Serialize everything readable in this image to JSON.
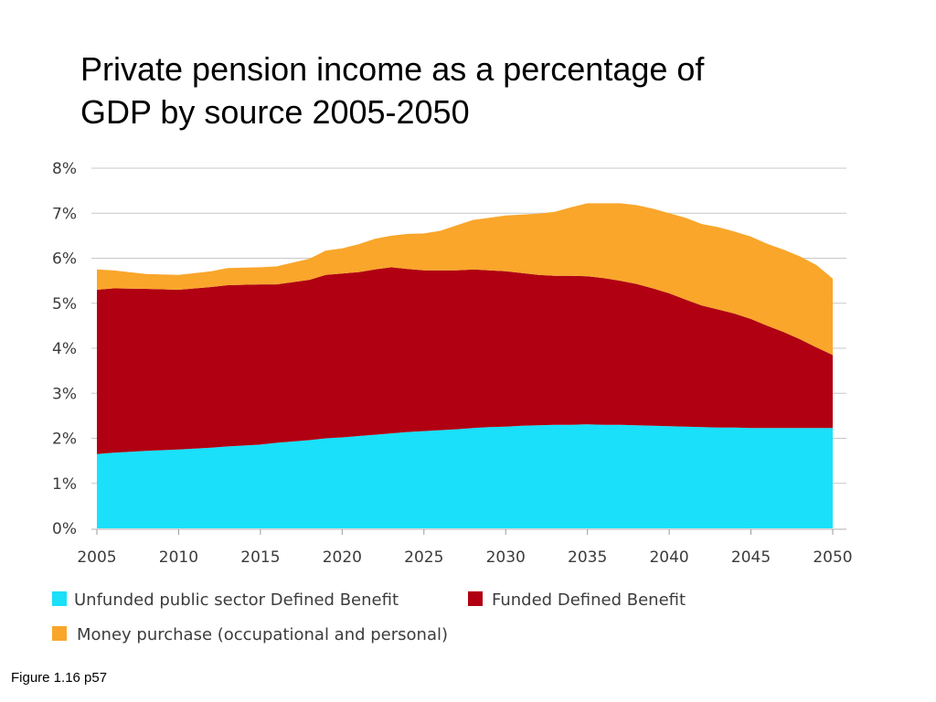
{
  "slide": {
    "title_line1": "Private pension income as a percentage of",
    "title_line2": "GDP by source 2005-2050",
    "caption": "Figure 1.16 p57"
  },
  "chart_data": {
    "type": "area",
    "stacked": true,
    "title": "",
    "xlabel": "",
    "ylabel": "",
    "x": [
      2005,
      2006,
      2008,
      2010,
      2012,
      2013,
      2015,
      2016,
      2018,
      2019,
      2020,
      2021,
      2022,
      2023,
      2024,
      2025,
      2026,
      2027,
      2028,
      2029,
      2030,
      2031,
      2032,
      2033,
      2034,
      2035,
      2036,
      2037,
      2038,
      2039,
      2040,
      2041,
      2042,
      2043,
      2044,
      2045,
      2046,
      2047,
      2048,
      2049,
      2050
    ],
    "xticks": [
      2005,
      2010,
      2015,
      2020,
      2025,
      2030,
      2035,
      2040,
      2045,
      2050
    ],
    "xtick_labels": [
      "2005",
      "2010",
      "2015",
      "2020",
      "2025",
      "2030",
      "2035",
      "2040",
      "2045",
      "2050"
    ],
    "ylim": [
      0,
      8
    ],
    "yticks": [
      0,
      1,
      2,
      3,
      4,
      5,
      6,
      7,
      8
    ],
    "ytick_labels": [
      "0%",
      "1%",
      "2%",
      "3%",
      "4%",
      "5%",
      "6%",
      "7%",
      "8%"
    ],
    "grid": "horizontal",
    "legend_position": "bottom",
    "series": [
      {
        "name": "Unfunded public sector Defined Benefit",
        "color": "#1ae0fa",
        "values": [
          1.65,
          1.68,
          1.72,
          1.75,
          1.79,
          1.82,
          1.86,
          1.9,
          1.96,
          2.0,
          2.02,
          2.05,
          2.08,
          2.11,
          2.14,
          2.16,
          2.18,
          2.2,
          2.23,
          2.25,
          2.26,
          2.28,
          2.29,
          2.3,
          2.3,
          2.31,
          2.3,
          2.3,
          2.29,
          2.28,
          2.27,
          2.26,
          2.25,
          2.24,
          2.24,
          2.23,
          2.23,
          2.23,
          2.23,
          2.23,
          2.23
        ]
      },
      {
        "name": "Funded Defined Benefit",
        "color": "#b00012",
        "values": [
          3.65,
          3.65,
          3.6,
          3.55,
          3.57,
          3.58,
          3.56,
          3.52,
          3.56,
          3.63,
          3.64,
          3.64,
          3.67,
          3.69,
          3.62,
          3.57,
          3.55,
          3.53,
          3.52,
          3.48,
          3.45,
          3.39,
          3.34,
          3.31,
          3.31,
          3.29,
          3.26,
          3.2,
          3.14,
          3.05,
          2.95,
          2.82,
          2.7,
          2.62,
          2.53,
          2.42,
          2.27,
          2.13,
          1.97,
          1.79,
          1.62
        ]
      },
      {
        "name": "Money purchase (occupational and personal)",
        "color": "#f9a62b",
        "values": [
          0.45,
          0.4,
          0.33,
          0.33,
          0.35,
          0.38,
          0.38,
          0.4,
          0.47,
          0.54,
          0.56,
          0.62,
          0.68,
          0.7,
          0.78,
          0.82,
          0.88,
          1.0,
          1.1,
          1.17,
          1.24,
          1.3,
          1.36,
          1.42,
          1.52,
          1.62,
          1.66,
          1.72,
          1.75,
          1.77,
          1.78,
          1.82,
          1.81,
          1.83,
          1.82,
          1.83,
          1.82,
          1.83,
          1.84,
          1.83,
          1.7
        ]
      }
    ]
  }
}
